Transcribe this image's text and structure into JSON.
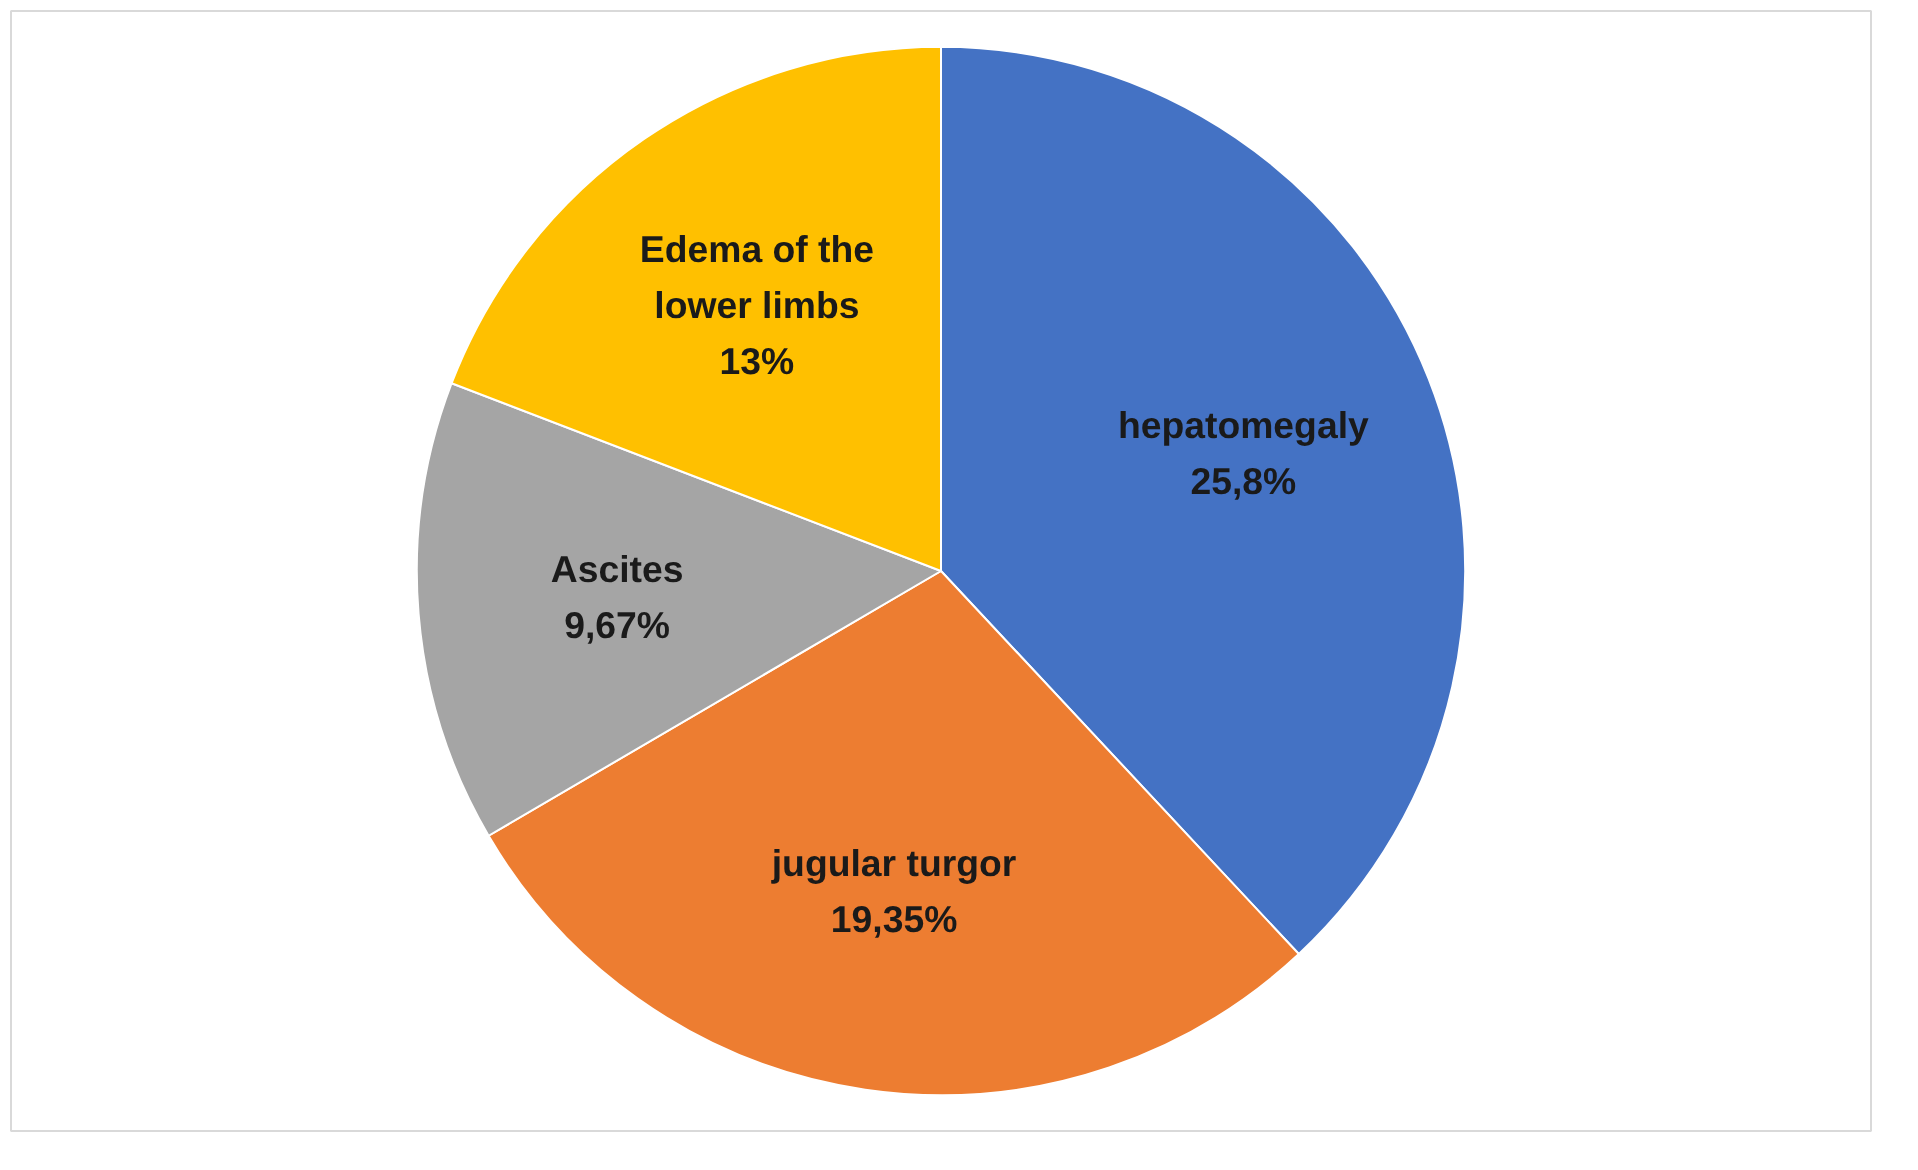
{
  "chart_data": {
    "type": "pie",
    "categories": [
      "hepatomegaly",
      "jugular turgor",
      "Ascites",
      "Edema of the lower limbs"
    ],
    "values": [
      25.8,
      19.35,
      9.67,
      13
    ],
    "value_labels": [
      "25,8%",
      "19,35%",
      "9,67%",
      "13%"
    ],
    "colors": [
      "#4472c4",
      "#ed7d31",
      "#a5a5a5",
      "#ffc000"
    ]
  }
}
